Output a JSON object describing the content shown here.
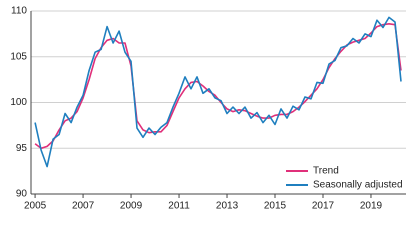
{
  "chart_data": {
    "type": "line",
    "x": [
      2005.0,
      2005.25,
      2005.5,
      2005.75,
      2006.0,
      2006.25,
      2006.5,
      2006.75,
      2007.0,
      2007.25,
      2007.5,
      2007.75,
      2008.0,
      2008.25,
      2008.5,
      2008.75,
      2009.0,
      2009.25,
      2009.5,
      2009.75,
      2010.0,
      2010.25,
      2010.5,
      2010.75,
      2011.0,
      2011.25,
      2011.5,
      2011.75,
      2012.0,
      2012.25,
      2012.5,
      2012.75,
      2013.0,
      2013.25,
      2013.5,
      2013.75,
      2014.0,
      2014.25,
      2014.5,
      2014.75,
      2015.0,
      2015.25,
      2015.5,
      2015.75,
      2016.0,
      2016.25,
      2016.5,
      2016.75,
      2017.0,
      2017.25,
      2017.5,
      2017.75,
      2018.0,
      2018.25,
      2018.5,
      2018.75,
      2019.0,
      2019.25,
      2019.5,
      2019.75,
      2020.0,
      2020.25
    ],
    "series": [
      {
        "name": "Trend",
        "color": "#e0307a",
        "values": [
          95.5,
          95,
          95.2,
          95.8,
          97,
          98,
          98.3,
          99,
          100.5,
          102.5,
          104.8,
          106,
          106.8,
          107,
          106.5,
          106.5,
          104,
          98,
          97,
          96.7,
          96.8,
          96.8,
          97.5,
          99,
          100.5,
          101.5,
          102.2,
          102.3,
          101.8,
          101.2,
          100.8,
          100,
          99.3,
          99,
          99.2,
          99.1,
          98.8,
          98.5,
          98.3,
          98.3,
          98.6,
          98.7,
          98.7,
          99,
          99.5,
          100.1,
          100.8,
          101.5,
          102.5,
          103.8,
          104.8,
          105.6,
          106.3,
          106.6,
          106.8,
          107,
          107.6,
          108.3,
          108.5,
          108.6,
          108.5,
          103.5
        ]
      },
      {
        "name": "Seasonally adjusted",
        "color": "#1f7fbf",
        "values": [
          97.8,
          94.8,
          93,
          96,
          96.5,
          98.8,
          97.8,
          99.5,
          100.8,
          103.5,
          105.5,
          105.8,
          108.3,
          106.5,
          107.8,
          105.5,
          104.5,
          97.2,
          96.2,
          97.2,
          96.5,
          97.3,
          97.8,
          99.5,
          101,
          102.8,
          101.5,
          102.8,
          101,
          101.5,
          100.5,
          100.2,
          98.8,
          99.5,
          98.8,
          99.5,
          98.3,
          98.9,
          97.8,
          98.6,
          97.6,
          99.3,
          98.3,
          99.6,
          99.2,
          100.6,
          100.4,
          102.2,
          102.1,
          104.2,
          104.6,
          106,
          106.2,
          107,
          106.5,
          107.5,
          107.2,
          109,
          108.2,
          109.3,
          108.8,
          102.3
        ]
      }
    ],
    "xlim": [
      2004.83,
      2020.46
    ],
    "ylim": [
      90,
      110
    ],
    "xticks": [
      2005,
      2007,
      2009,
      2011,
      2013,
      2015,
      2017,
      2019
    ],
    "yticks": [
      90,
      95,
      100,
      105,
      110
    ],
    "grid": true,
    "legend": "lower right"
  }
}
